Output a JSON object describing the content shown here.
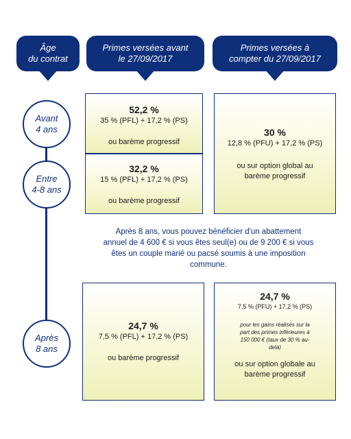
{
  "headers": {
    "age": "Âge\ndu contrat",
    "before": "Primes versées avant\nle 27/09/2017",
    "after": "Primes versées à\ncompter du 27/09/2017"
  },
  "periods": {
    "avant_line1": "Avant",
    "avant_line2": "4 ans",
    "entre_line1": "Entre",
    "entre_line2": "4-8 ans",
    "apres_line1": "Après",
    "apres_line2": "8 ans"
  },
  "box_avant": {
    "rate": "52,2 %",
    "detail": "35 % (PFL) + 17,2 % (PS)",
    "option": "ou barème progressif"
  },
  "box_entre": {
    "rate": "32,2 %",
    "detail": "15 % (PFL) + 17,2 % (PS)",
    "option": "ou barème progressif"
  },
  "box_new_short": {
    "rate": "30 %",
    "detail": "12,8 % (PFU) + 17,2 % (PS)",
    "option_line1": "ou sur option global au",
    "option_line2": "barème progressif"
  },
  "note": {
    "line1": "Après 8 ans, vous pouvez bénéficier d'un abattement",
    "line2": "annuel de 4 600 € si vous êtes seul(e) ou de 9 200 € si vous",
    "line3": "êtes un couple marié ou pacsé soumis à une imposition",
    "line4": "commune."
  },
  "box_apres_old": {
    "rate": "24,7 %",
    "detail": "7,5 % (PFL) + 17,2 % (PS)",
    "option": "ou barème progressif"
  },
  "box_apres_new": {
    "rate": "24,7 %",
    "detail": "7,5 % (PFU) + 17,2 % (PS)",
    "small_line1": "pour les gains réalisés sur la",
    "small_line2": "part des primes inférieures à",
    "small_line3": "150 000 € (taux de 30 % au-",
    "small_line4": "delà)",
    "option_line1": "ou sur option globale au",
    "option_line2": "barème progressif"
  },
  "colors": {
    "navy": "#0e2f7a",
    "yellow": "#eef0b8"
  }
}
